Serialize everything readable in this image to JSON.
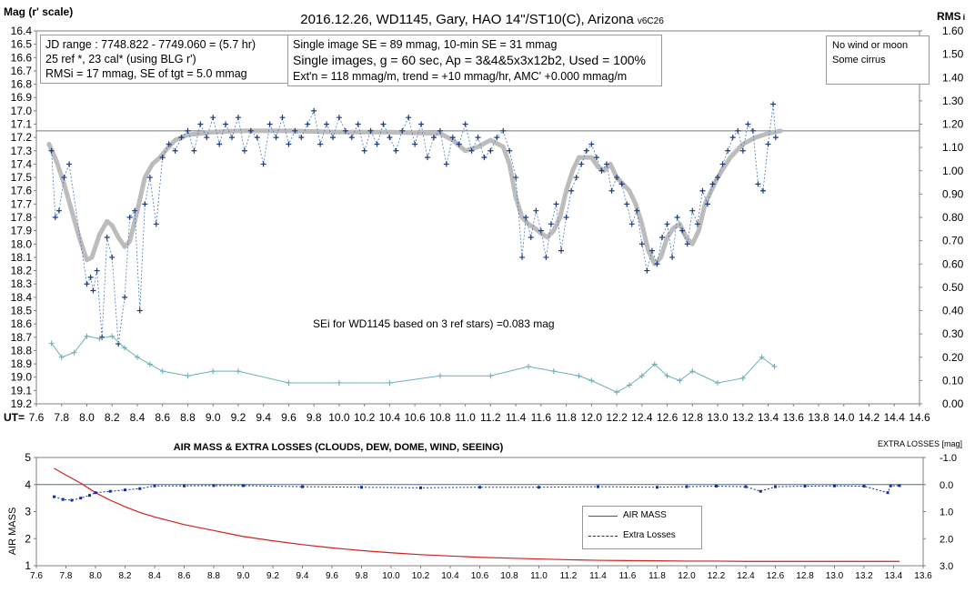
{
  "top_chart": {
    "title": "2016.12.26,  WD1145, Gary, HAO  14\"/ST10(C), Arizona",
    "version": "v6C26",
    "y_left_label": "Mag (r' scale)",
    "y_right_label": "RMS",
    "y_right_label_sub": "i",
    "x_label": "UT=",
    "info_left": [
      "JD range  : 7748.822 - 7749.060  = (5.7 hr)",
      "25 ref *, 23 cal* (using BLG r')",
      "RMSi = 17 mmag, SE of tgt = 5.0 mmag"
    ],
    "info_mid": [
      "Single image SE = 89 mmag, 10-min SE = 31 mmag",
      "Single images, g = 60 sec, Ap = 3&4&5x3x12b2, Used = 100%",
      "Ext'n = 118 mmag/m, trend = +10 mmag/hr, AMC' +0.000 mmag/m"
    ],
    "info_right": [
      "No wind or moon",
      "Some cirrus"
    ],
    "se_note": "SEi for WD1145 based on 3 ref stars) =0.083 mag"
  },
  "bottom_chart": {
    "title": "AIR MASS & EXTRA LOSSES (CLOUDS, DEW, DOME, WIND, SEEING)",
    "y_left_label": "AIR MASS",
    "y_right_label": "EXTRA LOSSES [mag]",
    "legend": [
      "AIR MASS",
      "Extra Losses"
    ]
  },
  "colors": {
    "mag": "#1f3a7a",
    "trend": "#bcbcbc",
    "rms": "#6fb0b8",
    "airmass": "#d02020",
    "losses": "#1030a0",
    "ref_line": "#5a6a70"
  },
  "chart_data": [
    {
      "type": "scatter",
      "title": "2016.12.26,  WD1145, Gary, HAO  14\"/ST10(C), Arizona",
      "xlabel": "UT=",
      "ylabel": "Mag (r' scale)",
      "xlim": [
        7.6,
        14.6
      ],
      "ylim": [
        19.2,
        16.4
      ],
      "y2label": "RMS i",
      "y2lim": [
        0.0,
        1.6
      ],
      "x_ticks": [
        "7.6",
        "7.8",
        "8.0",
        "8.2",
        "8.4",
        "8.6",
        "8.8",
        "9.0",
        "9.2",
        "9.4",
        "9.6",
        "9.8",
        "10.0",
        "10.2",
        "10.4",
        "10.6",
        "10.8",
        "11.0",
        "11.2",
        "11.4",
        "11.6",
        "11.8",
        "12.0",
        "12.2",
        "12.4",
        "12.6",
        "12.8",
        "13.0",
        "13.2",
        "13.4",
        "13.6",
        "13.8",
        "14.0",
        "14.2",
        "14.4",
        "14.6"
      ],
      "y_ticks": [
        "16.4",
        "16.5",
        "16.6",
        "16.7",
        "16.8",
        "16.9",
        "17.0",
        "17.1",
        "17.2",
        "17.3",
        "17.4",
        "17.5",
        "17.6",
        "17.7",
        "17.8",
        "17.9",
        "18.0",
        "18.1",
        "18.2",
        "18.3",
        "18.4",
        "18.5",
        "18.6",
        "18.7",
        "18.8",
        "18.9",
        "19.0",
        "19.1",
        "19.2"
      ],
      "y2_ticks": [
        "0.00",
        "0.10",
        "0.20",
        "0.30",
        "0.40",
        "0.50",
        "0.60",
        "0.70",
        "0.80",
        "0.90",
        "1.00",
        "1.10",
        "1.20",
        "1.30",
        "1.40",
        "1.50",
        "1.60"
      ],
      "reference_line_y": 17.15,
      "series": [
        {
          "name": "",
          "kind": "scatter-crosses",
          "x": [
            7.72,
            7.75,
            7.78,
            7.82,
            7.86,
            8.0,
            8.03,
            8.05,
            8.08,
            8.12,
            8.16,
            8.2,
            8.25,
            8.3,
            8.34,
            8.38,
            8.42,
            8.46,
            8.5,
            8.55,
            8.6,
            8.65,
            8.7,
            8.75,
            8.8,
            8.85,
            8.9,
            8.95,
            9.0,
            9.05,
            9.1,
            9.15,
            9.2,
            9.25,
            9.3,
            9.35,
            9.4,
            9.45,
            9.5,
            9.55,
            9.6,
            9.65,
            9.7,
            9.75,
            9.8,
            9.85,
            9.9,
            9.95,
            10.0,
            10.05,
            10.1,
            10.15,
            10.2,
            10.25,
            10.3,
            10.35,
            10.4,
            10.45,
            10.5,
            10.55,
            10.6,
            10.65,
            10.7,
            10.75,
            10.8,
            10.85,
            10.9,
            10.95,
            11.0,
            11.05,
            11.1,
            11.15,
            11.2,
            11.25,
            11.3,
            11.35,
            11.4,
            11.45,
            11.48,
            11.52,
            11.56,
            11.6,
            11.64,
            11.68,
            11.72,
            11.76,
            11.8,
            11.84,
            11.88,
            11.92,
            11.96,
            12.0,
            12.04,
            12.08,
            12.12,
            12.16,
            12.2,
            12.24,
            12.28,
            12.32,
            12.36,
            12.4,
            12.44,
            12.48,
            12.52,
            12.56,
            12.6,
            12.64,
            12.68,
            12.72,
            12.76,
            12.8,
            12.84,
            12.88,
            12.92,
            12.96,
            13.0,
            13.04,
            13.08,
            13.12,
            13.16,
            13.2,
            13.24,
            13.28,
            13.32,
            13.36,
            13.4,
            13.44,
            13.46
          ],
          "y": [
            17.3,
            17.8,
            17.75,
            17.5,
            17.4,
            18.3,
            18.25,
            18.35,
            18.2,
            18.7,
            17.95,
            18.1,
            18.75,
            18.4,
            17.8,
            17.75,
            18.5,
            17.7,
            17.5,
            17.85,
            17.35,
            17.25,
            17.3,
            17.2,
            17.15,
            17.3,
            17.1,
            17.2,
            17.05,
            17.25,
            17.1,
            17.2,
            17.05,
            17.3,
            17.15,
            17.2,
            17.4,
            17.1,
            17.2,
            17.05,
            17.25,
            17.15,
            17.2,
            17.1,
            17.0,
            17.25,
            17.1,
            17.2,
            17.05,
            17.15,
            17.2,
            17.1,
            17.3,
            17.15,
            17.25,
            17.1,
            17.2,
            17.3,
            17.15,
            17.05,
            17.25,
            17.1,
            17.35,
            17.2,
            17.15,
            17.4,
            17.2,
            17.25,
            17.1,
            17.3,
            17.2,
            17.35,
            17.3,
            17.2,
            17.15,
            17.3,
            17.5,
            18.1,
            17.8,
            17.95,
            17.75,
            17.9,
            18.1,
            17.85,
            17.7,
            18.05,
            17.8,
            17.6,
            17.5,
            17.4,
            17.3,
            17.25,
            17.35,
            17.45,
            17.4,
            17.6,
            17.5,
            17.55,
            17.7,
            17.85,
            17.75,
            18.0,
            18.2,
            18.05,
            18.15,
            17.95,
            17.85,
            18.1,
            17.8,
            17.9,
            18.0,
            17.75,
            17.85,
            17.6,
            17.7,
            17.55,
            17.5,
            17.4,
            17.3,
            17.2,
            17.15,
            17.3,
            17.1,
            17.15,
            17.55,
            17.6,
            17.25,
            16.95,
            17.2
          ]
        },
        {
          "name": "",
          "kind": "trend-line",
          "x": [
            7.7,
            7.76,
            7.82,
            7.88,
            7.94,
            8.0,
            8.04,
            8.1,
            8.16,
            8.2,
            8.25,
            8.3,
            8.34,
            8.4,
            8.46,
            8.52,
            8.58,
            8.64,
            8.7,
            8.8,
            9.0,
            9.2,
            9.6,
            10.0,
            10.4,
            10.8,
            10.9,
            11.0,
            11.1,
            11.2,
            11.3,
            11.35,
            11.4,
            11.45,
            11.5,
            11.55,
            11.6,
            11.65,
            11.7,
            11.75,
            11.8,
            11.85,
            11.9,
            12.0,
            12.05,
            12.1,
            12.15,
            12.2,
            12.25,
            12.3,
            12.35,
            12.4,
            12.45,
            12.5,
            12.55,
            12.6,
            12.65,
            12.7,
            12.75,
            12.8,
            12.85,
            12.9,
            13.0,
            13.1,
            13.2,
            13.3,
            13.4,
            13.5
          ],
          "y": [
            17.25,
            17.38,
            17.55,
            17.75,
            17.95,
            18.12,
            18.1,
            17.93,
            17.83,
            17.86,
            17.95,
            18.02,
            17.98,
            17.75,
            17.5,
            17.4,
            17.35,
            17.28,
            17.22,
            17.18,
            17.16,
            17.15,
            17.15,
            17.16,
            17.16,
            17.17,
            17.22,
            17.3,
            17.27,
            17.22,
            17.27,
            17.4,
            17.65,
            17.8,
            17.85,
            17.88,
            17.92,
            17.95,
            17.9,
            17.8,
            17.6,
            17.45,
            17.35,
            17.35,
            17.42,
            17.45,
            17.4,
            17.5,
            17.55,
            17.6,
            17.7,
            17.85,
            18.05,
            18.15,
            18.1,
            17.95,
            17.88,
            17.85,
            17.95,
            18.0,
            17.9,
            17.7,
            17.5,
            17.35,
            17.25,
            17.2,
            17.17,
            17.15
          ]
        },
        {
          "name": "",
          "kind": "rms-crosses",
          "axis": "right",
          "x": [
            7.72,
            7.8,
            7.9,
            8.0,
            8.1,
            8.2,
            8.3,
            8.4,
            8.5,
            8.6,
            8.8,
            9.0,
            9.2,
            9.6,
            10.0,
            10.4,
            10.8,
            11.2,
            11.5,
            11.7,
            11.9,
            12.0,
            12.2,
            12.3,
            12.4,
            12.5,
            12.6,
            12.7,
            12.8,
            13.0,
            13.2,
            13.35,
            13.45
          ],
          "y": [
            0.26,
            0.2,
            0.22,
            0.29,
            0.28,
            0.29,
            0.24,
            0.2,
            0.17,
            0.14,
            0.12,
            0.14,
            0.14,
            0.09,
            0.09,
            0.09,
            0.12,
            0.12,
            0.16,
            0.14,
            0.12,
            0.1,
            0.05,
            0.08,
            0.12,
            0.17,
            0.12,
            0.1,
            0.14,
            0.09,
            0.11,
            0.2,
            0.16
          ]
        }
      ]
    },
    {
      "type": "line",
      "title": "AIR MASS & EXTRA LOSSES (CLOUDS, DEW, DOME, WIND, SEEING)",
      "xlabel": "",
      "ylabel": "AIR MASS",
      "xlim": [
        7.6,
        13.6
      ],
      "ylim": [
        1,
        5
      ],
      "y2label": "EXTRA LOSSES [mag]",
      "y2lim": [
        -1.0,
        3.0
      ],
      "x_ticks": [
        "7.6",
        "7.8",
        "8.0",
        "8.2",
        "8.4",
        "8.6",
        "8.8",
        "9.0",
        "9.2",
        "9.4",
        "9.6",
        "9.8",
        "10.0",
        "10.2",
        "10.4",
        "10.6",
        "10.8",
        "11.0",
        "11.2",
        "11.4",
        "11.6",
        "11.8",
        "12.0",
        "12.2",
        "12.4",
        "12.6",
        "12.8",
        "13.0",
        "13.2",
        "13.4",
        "13.6"
      ],
      "y_ticks": [
        "1",
        "2",
        "3",
        "4",
        "5"
      ],
      "y2_ticks": [
        "-1.0",
        "0.0",
        "1.0",
        "2.0",
        "3.0"
      ],
      "reference_line_y2": 0.0,
      "legend_position": "center-right",
      "series": [
        {
          "name": "AIR MASS",
          "x": [
            7.72,
            7.8,
            7.9,
            8.0,
            8.1,
            8.2,
            8.3,
            8.4,
            8.6,
            8.8,
            9.0,
            9.2,
            9.4,
            9.6,
            9.8,
            10.0,
            10.2,
            10.4,
            10.6,
            10.8,
            11.0,
            11.2,
            11.4,
            11.6,
            11.8,
            12.0,
            12.2,
            12.4,
            12.6,
            12.8,
            13.0,
            13.2,
            13.44
          ],
          "y": [
            4.6,
            4.35,
            4.05,
            3.7,
            3.42,
            3.18,
            2.97,
            2.8,
            2.52,
            2.3,
            2.08,
            1.92,
            1.78,
            1.66,
            1.56,
            1.48,
            1.41,
            1.36,
            1.31,
            1.28,
            1.25,
            1.22,
            1.2,
            1.19,
            1.18,
            1.17,
            1.17,
            1.16,
            1.16,
            1.16,
            1.16,
            1.16,
            1.16
          ]
        },
        {
          "name": "Extra Losses",
          "y_axis": "right",
          "x": [
            7.72,
            7.78,
            7.84,
            7.9,
            7.96,
            8.0,
            8.1,
            8.2,
            8.3,
            8.4,
            8.6,
            8.8,
            9.0,
            9.4,
            9.8,
            10.2,
            10.6,
            11.0,
            11.4,
            11.8,
            12.0,
            12.2,
            12.4,
            12.5,
            12.6,
            12.8,
            13.0,
            13.2,
            13.36,
            13.38,
            13.44
          ],
          "y": [
            0.45,
            0.55,
            0.58,
            0.5,
            0.4,
            0.3,
            0.25,
            0.2,
            0.15,
            0.05,
            0.05,
            0.04,
            0.04,
            0.08,
            0.1,
            0.12,
            0.1,
            0.1,
            0.08,
            0.1,
            0.08,
            0.06,
            0.08,
            0.25,
            0.08,
            0.06,
            0.05,
            0.06,
            0.3,
            0.05,
            0.04
          ]
        }
      ]
    }
  ]
}
